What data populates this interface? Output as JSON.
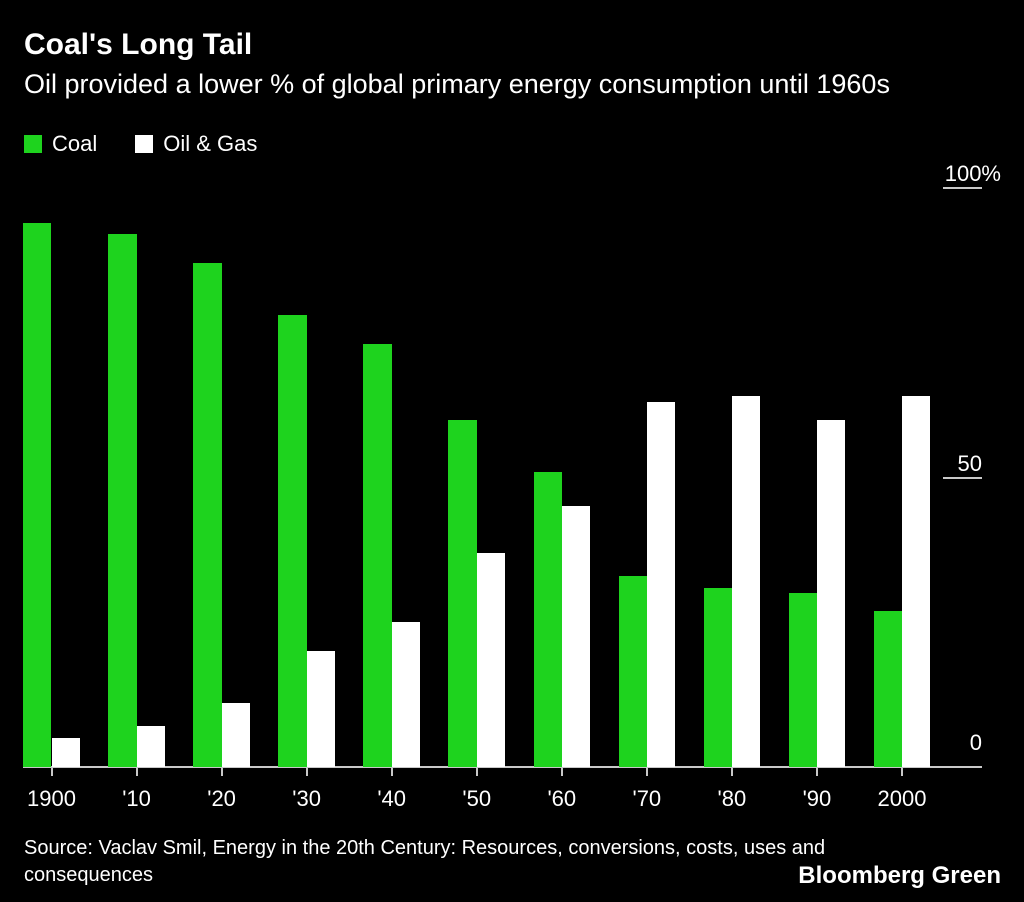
{
  "header": {
    "title": "Coal's Long Tail",
    "subtitle": "Oil provided a lower % of global primary energy consumption until 1960s"
  },
  "legend": {
    "items": [
      {
        "label": "Coal",
        "color": "#1ed31e"
      },
      {
        "label": "Oil & Gas",
        "color": "#ffffff"
      }
    ]
  },
  "chart_data": {
    "type": "bar",
    "title": "Coal's Long Tail",
    "subtitle": "Oil provided a lower % of global primary energy consumption until 1960s",
    "categories": [
      "1900",
      "'10",
      "'20",
      "'30",
      "'40",
      "'50",
      "'60",
      "'70",
      "'80",
      "'90",
      "2000"
    ],
    "series": [
      {
        "name": "Coal",
        "color": "#1ed31e",
        "values": [
          94,
          92,
          87,
          78,
          73,
          60,
          51,
          33,
          31,
          30,
          27
        ]
      },
      {
        "name": "Oil & Gas",
        "color": "#ffffff",
        "values": [
          5,
          7,
          11,
          20,
          25,
          37,
          45,
          63,
          64,
          60,
          64
        ]
      }
    ],
    "xlabel": "",
    "ylabel": "",
    "ylim": [
      0,
      100
    ],
    "yticks": [
      {
        "value": 100,
        "label": "100%"
      },
      {
        "value": 50,
        "label": "50"
      },
      {
        "value": 0,
        "label": "0"
      }
    ],
    "grid": false,
    "legend_position": "top-left",
    "axis_color": "#c9c9c9",
    "background_color": "#000000"
  },
  "footer": {
    "source": "Source: Vaclav Smil, Energy in the 20th Century: Resources, conversions, costs, uses and consequences",
    "logo": "Bloomberg Green"
  }
}
